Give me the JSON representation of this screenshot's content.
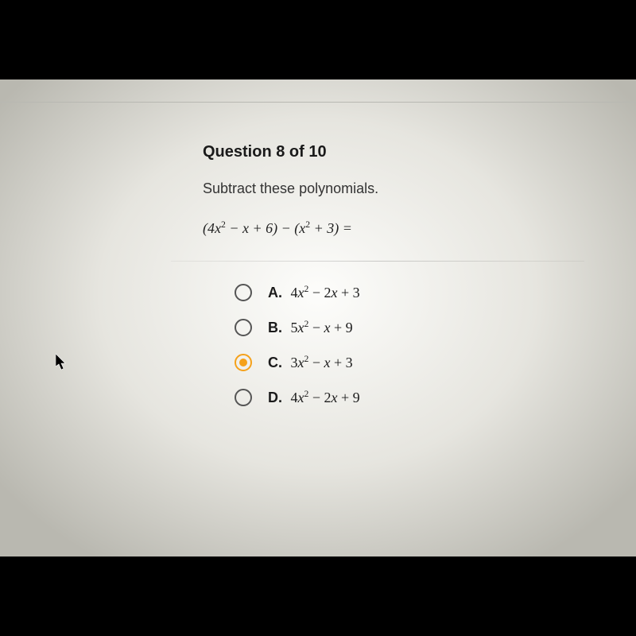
{
  "background_black": "#000000",
  "paper_gradient": {
    "center": "#fdfdfb",
    "mid": "#e6e5df",
    "edge": "#b9b8b0"
  },
  "accent_color": "#f5a11a",
  "radio_border_color": "#555555",
  "text_color": "#1b1b1b",
  "question": {
    "number_label": "Question 8 of 10",
    "prompt": "Subtract these polynomials.",
    "expression_html": "(4<span class='math'>x</span><sup>2</sup> − <span class='math'>x</span> + 6) − (<span class='math'>x</span><sup>2</sup> + 3) ="
  },
  "options": [
    {
      "letter": "A.",
      "expr_html": "4<span class='math'>x</span><sup>2</sup> − 2<span class='math'>x</span> + 3",
      "selected": false
    },
    {
      "letter": "B.",
      "expr_html": "5<span class='math'>x</span><sup>2</sup> − <span class='math'>x</span> + 9",
      "selected": false
    },
    {
      "letter": "C.",
      "expr_html": "3<span class='math'>x</span><sup>2</sup> − <span class='math'>x</span> + 3",
      "selected": true
    },
    {
      "letter": "D.",
      "expr_html": "4<span class='math'>x</span><sup>2</sup> − 2<span class='math'>x</span> + 9",
      "selected": false
    }
  ],
  "cursor_color": "#000000"
}
